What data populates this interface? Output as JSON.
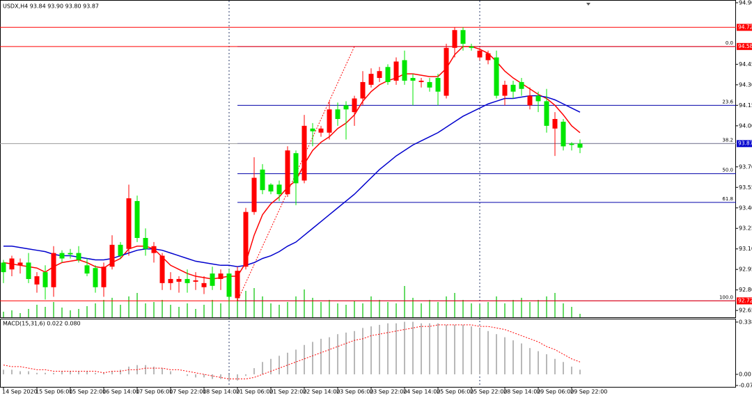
{
  "chart_data": {
    "type": "candlestick",
    "header": "USDX,H4  93.84 93.90 93.80 93.87",
    "categories": [
      "14 Sep 2020",
      null,
      null,
      null,
      "15 Sep 06:00",
      null,
      null,
      null,
      "15 Sep 22:00",
      null,
      null,
      null,
      "16 Sep 14:00",
      null,
      null,
      null,
      "17 Sep 06:00",
      null,
      null,
      null,
      "17 Sep 22:00",
      null,
      null,
      null,
      "18 Sep 14:00",
      null,
      null,
      null,
      "21 Sep 06:00",
      null,
      null,
      null,
      "21 Sep 22:00",
      null,
      null,
      null,
      "22 Sep 14:00",
      null,
      null,
      null,
      "23 Sep 06:00",
      null,
      null,
      null,
      "23 Sep 22:00",
      null,
      null,
      null,
      "24 Sep 14:00",
      null,
      null,
      null,
      "25 Sep 06:00",
      null,
      null,
      null,
      "25 Sep 22:00",
      null,
      null,
      null,
      "28 Sep 14:00",
      null,
      null,
      null,
      "29 Sep 06:00",
      null,
      null,
      null,
      "29 Sep 22:00",
      null
    ],
    "open": [
      92.93,
      93.03,
      93.0,
      92.88,
      92.9,
      92.82,
      93.07,
      93.03,
      93.06,
      93.02,
      92.92,
      92.82,
      92.97,
      93.13,
      93.05,
      93.47,
      93.18,
      93.1,
      93.12,
      93.05,
      92.88,
      92.88,
      92.85,
      92.87,
      92.85,
      92.83,
      92.92,
      92.75,
      92.94,
      93.37,
      93.62,
      93.53,
      93.52,
      93.5,
      93.82,
      93.58,
      94.0,
      93.96,
      93.98,
      94.12,
      94.05,
      94.12,
      94.2,
      94.32,
      94.38,
      94.4,
      94.32,
      94.47,
      94.33,
      94.33,
      94.33,
      94.28,
      94.25,
      94.57,
      94.7,
      94.6,
      94.57,
      94.55,
      94.53,
      94.22,
      94.3,
      94.25,
      94.27,
      94.22,
      94.18,
      94.0,
      94.05,
      93.85,
      93.86,
      93.84
    ],
    "high": [
      93.02,
      93.05,
      93.03,
      93.07,
      92.93,
      92.98,
      93.12,
      93.09,
      93.1,
      93.12,
      93.03,
      92.98,
      93.0,
      93.2,
      93.15,
      93.57,
      93.49,
      93.25,
      93.15,
      93.07,
      92.93,
      92.9,
      92.95,
      92.93,
      92.9,
      92.97,
      92.95,
      92.95,
      92.97,
      93.4,
      93.77,
      93.72,
      93.58,
      93.6,
      93.85,
      93.82,
      94.08,
      94.02,
      94.0,
      94.18,
      94.17,
      94.18,
      94.22,
      94.4,
      94.42,
      94.43,
      94.45,
      94.5,
      94.55,
      94.38,
      94.35,
      94.35,
      94.38,
      94.6,
      94.72,
      94.72,
      94.6,
      94.57,
      94.55,
      94.55,
      94.33,
      94.33,
      94.35,
      94.28,
      94.25,
      94.27,
      94.1,
      94.05,
      93.88,
      93.9
    ],
    "low": [
      92.85,
      92.9,
      92.92,
      92.85,
      92.78,
      92.73,
      92.75,
      93.0,
      93.03,
      93.0,
      92.9,
      92.78,
      92.75,
      92.95,
      93.03,
      93.05,
      93.15,
      93.05,
      93.0,
      92.8,
      92.8,
      92.78,
      92.78,
      92.8,
      92.77,
      92.8,
      92.8,
      92.72,
      92.72,
      92.95,
      93.35,
      93.5,
      93.5,
      93.45,
      93.48,
      93.42,
      93.58,
      93.85,
      93.92,
      93.9,
      94.0,
      93.9,
      94.0,
      94.15,
      94.28,
      94.32,
      94.3,
      94.3,
      94.3,
      94.15,
      94.28,
      94.25,
      94.15,
      94.2,
      94.5,
      94.55,
      94.55,
      94.48,
      94.45,
      94.2,
      94.15,
      94.2,
      94.22,
      94.12,
      94.1,
      93.95,
      93.78,
      93.82,
      93.82,
      93.8
    ],
    "close": [
      93.0,
      92.95,
      92.98,
      93.0,
      92.84,
      92.93,
      92.82,
      93.07,
      93.07,
      93.07,
      92.98,
      92.96,
      92.82,
      92.97,
      93.13,
      93.1,
      93.45,
      93.18,
      93.07,
      92.85,
      92.85,
      92.86,
      92.88,
      92.86,
      92.82,
      92.92,
      92.88,
      92.92,
      92.74,
      92.97,
      93.37,
      93.68,
      93.57,
      93.57,
      93.5,
      93.8,
      93.6,
      93.98,
      93.95,
      93.95,
      94.12,
      94.15,
      94.1,
      94.2,
      94.3,
      94.35,
      94.43,
      94.33,
      94.48,
      94.35,
      94.32,
      94.32,
      94.35,
      94.22,
      94.57,
      94.7,
      94.58,
      94.5,
      94.48,
      94.5,
      94.22,
      94.3,
      94.32,
      94.15,
      94.22,
      94.18,
      93.98,
      94.03,
      93.87,
      93.87
    ],
    "up_color": "#00e600",
    "down_color": "#ff0000",
    "moving_averages": [
      {
        "color": "#ff0000",
        "values": [
          93.0,
          92.99,
          92.98,
          92.97,
          92.96,
          92.93,
          92.97,
          93.0,
          93.01,
          93.02,
          93.0,
          92.97,
          92.96,
          93.0,
          93.03,
          93.1,
          93.12,
          93.12,
          93.1,
          93.04,
          92.98,
          92.95,
          92.92,
          92.9,
          92.89,
          92.88,
          92.89,
          92.9,
          92.9,
          93.0,
          93.2,
          93.35,
          93.43,
          93.48,
          93.55,
          93.6,
          93.72,
          93.82,
          93.88,
          93.92,
          93.98,
          94.02,
          94.08,
          94.18,
          94.25,
          94.3,
          94.33,
          94.35,
          94.38,
          94.38,
          94.37,
          94.36,
          94.36,
          94.42,
          94.52,
          94.58,
          94.58,
          94.56,
          94.53,
          94.47,
          94.4,
          94.35,
          94.31,
          94.27,
          94.23,
          94.2,
          94.15,
          94.08,
          94.0,
          93.95
        ]
      },
      {
        "color": "#0000cd",
        "values": [
          93.12,
          93.12,
          93.11,
          93.1,
          93.09,
          93.08,
          93.06,
          93.05,
          93.05,
          93.04,
          93.03,
          93.02,
          93.02,
          93.03,
          93.05,
          93.07,
          93.09,
          93.1,
          93.1,
          93.09,
          93.07,
          93.05,
          93.03,
          93.01,
          93.0,
          92.99,
          92.98,
          92.98,
          92.97,
          92.98,
          93.0,
          93.03,
          93.05,
          93.08,
          93.12,
          93.15,
          93.2,
          93.25,
          93.3,
          93.35,
          93.4,
          93.45,
          93.5,
          93.56,
          93.62,
          93.68,
          93.73,
          93.78,
          93.82,
          93.86,
          93.89,
          93.92,
          93.95,
          93.99,
          94.03,
          94.07,
          94.1,
          94.13,
          94.16,
          94.18,
          94.2,
          94.2,
          94.21,
          94.22,
          94.22,
          94.21,
          94.19,
          94.16,
          94.13,
          94.1
        ]
      }
    ],
    "volume": [
      8,
      10,
      6,
      12,
      18,
      15,
      22,
      14,
      10,
      12,
      16,
      20,
      25,
      28,
      18,
      30,
      35,
      20,
      22,
      25,
      18,
      15,
      20,
      12,
      18,
      25,
      20,
      40,
      30,
      38,
      42,
      30,
      20,
      18,
      22,
      30,
      40,
      28,
      22,
      25,
      20,
      18,
      24,
      20,
      30,
      25,
      22,
      20,
      45,
      28,
      20,
      25,
      22,
      30,
      35,
      25,
      20,
      18,
      22,
      30,
      20,
      25,
      28,
      22,
      25,
      30,
      35,
      20,
      15,
      5
    ],
    "volume_color": "#32cd32",
    "ylim": [
      92.6,
      94.92
    ],
    "yticks": [
      {
        "value": 94.9,
        "label": "94.90"
      },
      {
        "value": 94.45,
        "label": "94.45"
      },
      {
        "value": 94.3,
        "label": "94.30"
      },
      {
        "value": 94.15,
        "label": "94.15"
      },
      {
        "value": 94.0,
        "label": "94.00"
      },
      {
        "value": 93.7,
        "label": "93.70"
      },
      {
        "value": 93.55,
        "label": "93.55"
      },
      {
        "value": 93.4,
        "label": "93.40"
      },
      {
        "value": 93.25,
        "label": "93.25"
      },
      {
        "value": 93.1,
        "label": "93.10"
      },
      {
        "value": 92.95,
        "label": "92.95"
      },
      {
        "value": 92.8,
        "label": "92.80"
      },
      {
        "value": 92.65,
        "label": "92.65"
      }
    ],
    "levels": [
      {
        "value": 94.72,
        "label": "94.72",
        "color": "#ff0000"
      },
      {
        "value": 94.58,
        "label": "94.58",
        "color": "#ff0000"
      },
      {
        "value": 93.87,
        "label": "93.87",
        "color": "#0000cd"
      },
      {
        "value": 92.72,
        "label": "92.72",
        "color": "#ff0000"
      }
    ],
    "fibonacci": [
      {
        "label": "0.0",
        "price": 94.58
      },
      {
        "label": "23.6",
        "price": 94.15
      },
      {
        "label": "38.2",
        "price": 93.87
      },
      {
        "label": "50.0",
        "price": 93.65
      },
      {
        "label": "61.8",
        "price": 93.44
      },
      {
        "label": "100.0",
        "price": 92.72
      }
    ],
    "macd": {
      "label": "MACD(15,31,6) 0.022 0.080",
      "histogram": [
        0.03,
        0.03,
        0.02,
        0.02,
        0.01,
        0.01,
        0.01,
        0.02,
        0.02,
        0.02,
        0.02,
        0.01,
        0.01,
        0.02,
        0.03,
        0.05,
        0.06,
        0.06,
        0.05,
        0.04,
        0.02,
        0.0,
        -0.01,
        -0.02,
        -0.02,
        -0.03,
        -0.03,
        -0.04,
        -0.04,
        -0.01,
        0.04,
        0.08,
        0.1,
        0.12,
        0.14,
        0.16,
        0.19,
        0.21,
        0.23,
        0.24,
        0.26,
        0.27,
        0.28,
        0.3,
        0.31,
        0.32,
        0.33,
        0.33,
        0.34,
        0.34,
        0.33,
        0.33,
        0.33,
        0.32,
        0.32,
        0.32,
        0.31,
        0.3,
        0.28,
        0.26,
        0.24,
        0.22,
        0.2,
        0.17,
        0.15,
        0.13,
        0.1,
        0.08,
        0.05,
        0.03
      ],
      "signal": [
        0.06,
        0.05,
        0.05,
        0.04,
        0.03,
        0.03,
        0.02,
        0.02,
        0.02,
        0.02,
        0.02,
        0.02,
        0.01,
        0.02,
        0.02,
        0.03,
        0.03,
        0.04,
        0.04,
        0.04,
        0.03,
        0.03,
        0.02,
        0.01,
        0.0,
        -0.01,
        -0.02,
        -0.03,
        -0.03,
        -0.03,
        -0.02,
        0.0,
        0.02,
        0.04,
        0.06,
        0.08,
        0.1,
        0.12,
        0.14,
        0.16,
        0.18,
        0.2,
        0.22,
        0.23,
        0.25,
        0.26,
        0.27,
        0.28,
        0.29,
        0.3,
        0.31,
        0.31,
        0.32,
        0.32,
        0.32,
        0.32,
        0.32,
        0.31,
        0.31,
        0.3,
        0.29,
        0.27,
        0.25,
        0.23,
        0.21,
        0.18,
        0.16,
        0.13,
        0.1,
        0.08
      ],
      "histogram_color": "#a0a0a0",
      "signal_color": "#ff0000",
      "ylim": [
        -0.081,
        0.36
      ],
      "yticks": [
        0.338,
        {
          "value": 0,
          "label": "0.00"
        },
        -0.072
      ]
    }
  }
}
